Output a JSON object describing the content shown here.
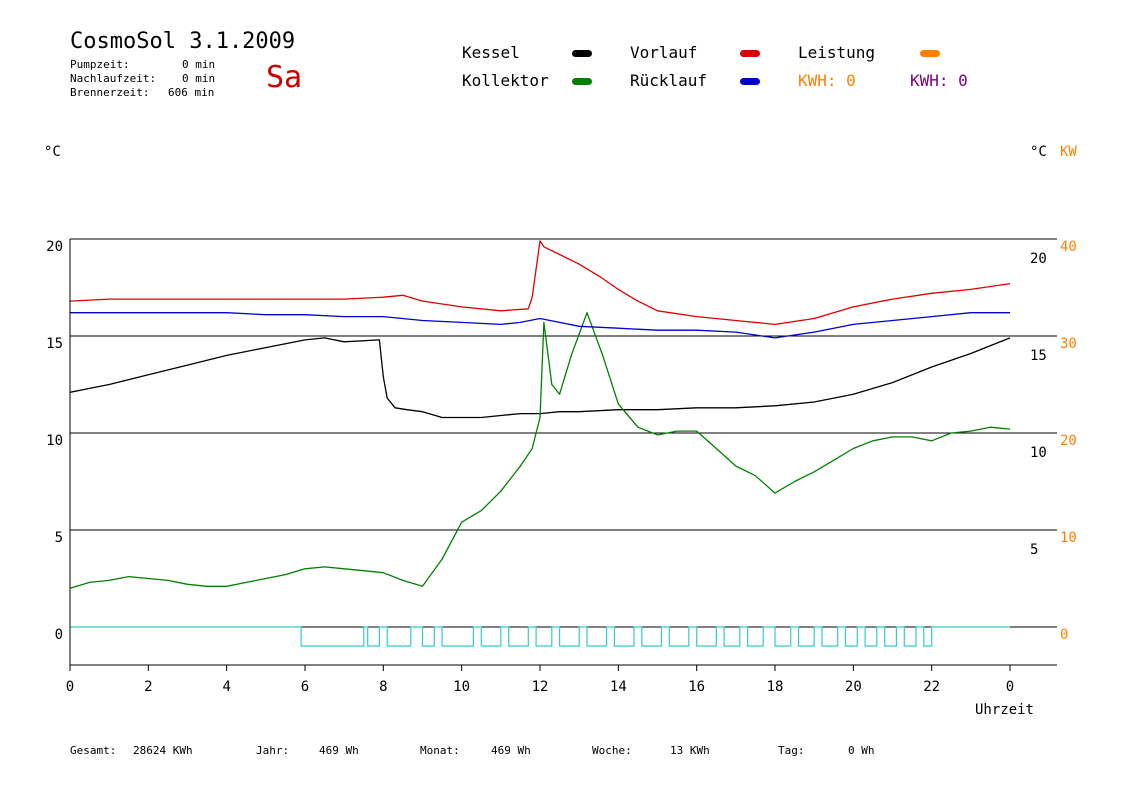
{
  "header": {
    "title": "CosmoSol 3.1.2009",
    "day": "Sa",
    "stats": [
      {
        "label": "Pumpzeit:",
        "value": "0 min"
      },
      {
        "label": "Nachlaufzeit:",
        "value": "0 min"
      },
      {
        "label": "Brennerzeit:",
        "value": "606 min"
      }
    ]
  },
  "legend": {
    "kessel": "Kessel",
    "kollektor": "Kollektor",
    "vorlauf": "Vorlauf",
    "ruecklauf": "Rücklauf",
    "leistung": "Leistung",
    "kwh_orange": "KWH: 0",
    "kwh_purple": "KWH: 0"
  },
  "units": {
    "left": "°C",
    "right_c": "°C",
    "right_kw": "KW"
  },
  "footer": [
    {
      "label": "Gesamt:",
      "value": "28624 KWh"
    },
    {
      "label": "Jahr:",
      "value": "469 Wh"
    },
    {
      "label": "Monat:",
      "value": "469 Wh"
    },
    {
      "label": "Woche:",
      "value": "13 KWh"
    },
    {
      "label": "Tag:",
      "value": "0 Wh"
    }
  ],
  "chart_data": {
    "type": "line",
    "xlabel": "Uhrzeit",
    "x_ticks": [
      "0",
      "2",
      "4",
      "6",
      "8",
      "10",
      "12",
      "14",
      "16",
      "18",
      "20",
      "22",
      "0"
    ],
    "xlim": [
      0,
      24
    ],
    "ylim": [
      -2,
      20
    ],
    "y_ticks_left": [
      "0",
      "5",
      "10",
      "15",
      "20"
    ],
    "y_ticks_right_c": [
      "5",
      "10",
      "15",
      "20"
    ],
    "y_ticks_right_kw": [
      "0",
      "10",
      "20",
      "30",
      "40"
    ],
    "grid": "horizontal",
    "colors": {
      "kessel": "#000000",
      "kollektor": "#008000",
      "vorlauf": "#dd0000",
      "ruecklauf": "#0000cc",
      "leistung": "#ff8000",
      "kwh_purple": "#800080",
      "pump": "#33cccc"
    },
    "series": [
      {
        "name": "Kessel",
        "color": "#000000",
        "x": [
          0,
          0.5,
          1,
          2,
          3,
          4,
          5,
          6,
          6.5,
          7,
          7.9,
          8.0,
          8.1,
          8.3,
          8.6,
          9,
          9.5,
          10,
          10.5,
          11,
          11.5,
          12,
          12.5,
          13,
          14,
          15,
          16,
          17,
          18,
          19,
          20,
          21,
          22,
          23,
          24
        ],
        "y": [
          12.1,
          12.3,
          12.5,
          13,
          13.5,
          14,
          14.4,
          14.8,
          14.9,
          14.7,
          14.8,
          12.9,
          11.8,
          11.3,
          11.2,
          11.1,
          10.8,
          10.8,
          10.8,
          10.9,
          11,
          11,
          11.1,
          11.1,
          11.2,
          11.2,
          11.3,
          11.3,
          11.4,
          11.6,
          12.0,
          12.6,
          13.4,
          14.1,
          14.9
        ]
      },
      {
        "name": "Kollektor",
        "color": "#008000",
        "x": [
          0,
          0.5,
          1,
          1.5,
          2,
          2.5,
          3,
          3.5,
          4,
          4.5,
          5,
          5.5,
          6,
          6.5,
          7,
          7.5,
          8,
          8.5,
          9,
          9.5,
          10,
          10.5,
          11,
          11.5,
          11.8,
          12,
          12.1,
          12.3,
          12.5,
          12.8,
          13.2,
          13.6,
          14,
          14.5,
          15,
          15.5,
          16,
          16.5,
          17,
          17.5,
          18,
          18.5,
          19,
          19.5,
          20,
          20.5,
          21,
          21.5,
          22,
          22.5,
          23,
          23.5,
          24
        ],
        "y": [
          2,
          2.3,
          2.4,
          2.6,
          2.5,
          2.4,
          2.2,
          2.1,
          2.1,
          2.3,
          2.5,
          2.7,
          3.0,
          3.1,
          3.0,
          2.9,
          2.8,
          2.4,
          2.1,
          3.5,
          5.4,
          6.0,
          7.0,
          8.3,
          9.2,
          10.8,
          15.7,
          12.5,
          12.0,
          14,
          16.2,
          14,
          11.5,
          10.3,
          9.9,
          10.1,
          10.1,
          9.2,
          8.3,
          7.8,
          6.9,
          7.5,
          8.0,
          8.6,
          9.2,
          9.6,
          9.8,
          9.8,
          9.6,
          10.0,
          10.1,
          10.3,
          10.2
        ]
      },
      {
        "name": "Vorlauf",
        "color": "#dd0000",
        "x": [
          0,
          1,
          2,
          3,
          4,
          5,
          6,
          7,
          8,
          8.5,
          9,
          10,
          11,
          11.7,
          11.8,
          12.0,
          12.1,
          12.5,
          13,
          13.5,
          14,
          14.5,
          15,
          16,
          17,
          18,
          19,
          20,
          21,
          22,
          23,
          24
        ],
        "y": [
          16.8,
          16.9,
          16.9,
          16.9,
          16.9,
          16.9,
          16.9,
          16.9,
          17,
          17.1,
          16.8,
          16.5,
          16.3,
          16.4,
          17.0,
          19.9,
          19.6,
          19.2,
          18.7,
          18.1,
          17.4,
          16.8,
          16.3,
          16.0,
          15.8,
          15.6,
          15.9,
          16.5,
          16.9,
          17.2,
          17.4,
          17.7
        ]
      },
      {
        "name": "Rücklauf",
        "color": "#0000cc",
        "x": [
          0,
          1,
          2,
          3,
          4,
          5,
          6,
          7,
          8,
          9,
          10,
          11,
          11.5,
          12,
          12.5,
          13,
          14,
          15,
          16,
          17,
          18,
          19,
          20,
          21,
          22,
          23,
          24
        ],
        "y": [
          16.2,
          16.2,
          16.2,
          16.2,
          16.2,
          16.1,
          16.1,
          16.0,
          16.0,
          15.8,
          15.7,
          15.6,
          15.7,
          15.9,
          15.7,
          15.5,
          15.4,
          15.3,
          15.3,
          15.2,
          14.9,
          15.2,
          15.6,
          15.8,
          16.0,
          16.2,
          16.2
        ]
      }
    ],
    "pump_indicator": {
      "name": "Pumpe",
      "color": "#33cccc",
      "on_intervals": [
        [
          5.9,
          7.5
        ],
        [
          7.6,
          7.9
        ],
        [
          8.1,
          8.7
        ],
        [
          9.0,
          9.3
        ],
        [
          9.5,
          10.3
        ],
        [
          10.5,
          11.0
        ],
        [
          11.2,
          11.7
        ],
        [
          11.9,
          12.3
        ],
        [
          12.5,
          13.0
        ],
        [
          13.2,
          13.7
        ],
        [
          13.9,
          14.4
        ],
        [
          14.6,
          15.1
        ],
        [
          15.3,
          15.8
        ],
        [
          16.0,
          16.5
        ],
        [
          16.7,
          17.1
        ],
        [
          17.3,
          17.7
        ],
        [
          18.0,
          18.4
        ],
        [
          18.6,
          19.0
        ],
        [
          19.2,
          19.6
        ],
        [
          19.8,
          20.1
        ],
        [
          20.3,
          20.6
        ],
        [
          20.8,
          21.1
        ],
        [
          21.3,
          21.6
        ],
        [
          21.8,
          22.0
        ]
      ]
    }
  }
}
